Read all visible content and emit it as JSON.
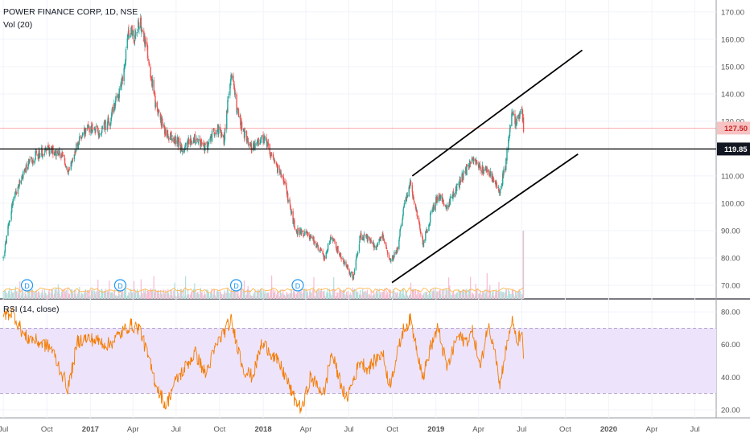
{
  "header": {
    "title": "POWER FINANCE CORP, 1D, NSE",
    "volume_label": "Vol (20)",
    "rsi_label": "RSI (14, close)"
  },
  "colors": {
    "up": "#26a69a",
    "down": "#ef5350",
    "rsi_line": "#f57c00",
    "rsi_band": "#ede3fb",
    "price_line": "#ef5350",
    "support_line": "#000000",
    "axis_text": "#555555",
    "grid": "#f0f3fa",
    "marker": "#2196f3"
  },
  "chart_data": [
    {
      "type": "candlestick",
      "title": "POWER FINANCE CORP, 1D, NSE",
      "x_tick_labels": [
        "Jul",
        "Oct",
        "2017",
        "Apr",
        "Jul",
        "Oct",
        "2018",
        "Apr",
        "Jul",
        "Oct",
        "2019",
        "Apr",
        "Jul",
        "Oct",
        "2020",
        "Apr",
        "Jul"
      ],
      "bold_x_tick_labels": [
        "2017",
        "2018",
        "2019",
        "2020"
      ],
      "y_tick_labels": [
        "70.00",
        "80.00",
        "90.00",
        "100.00",
        "110.00",
        "120.00",
        "130.00",
        "140.00",
        "150.00",
        "160.00",
        "170.00"
      ],
      "ylim": [
        65,
        172
      ],
      "current_price": 127.5,
      "current_price_label": "127.50",
      "horizontal_line": 119.85,
      "horizontal_line_label": "119.85",
      "anchors": [
        [
          "2016-07-01",
          80
        ],
        [
          "2016-07-20",
          100
        ],
        [
          "2016-08-15",
          112
        ],
        [
          "2016-09-10",
          118
        ],
        [
          "2016-10-10",
          120
        ],
        [
          "2016-11-05",
          117
        ],
        [
          "2016-11-15",
          110
        ],
        [
          "2016-12-05",
          122
        ],
        [
          "2016-12-25",
          128
        ],
        [
          "2017-01-20",
          126
        ],
        [
          "2017-02-10",
          130
        ],
        [
          "2017-03-10",
          145
        ],
        [
          "2017-03-25",
          165
        ],
        [
          "2017-04-05",
          160
        ],
        [
          "2017-04-15",
          168
        ],
        [
          "2017-05-01",
          155
        ],
        [
          "2017-05-20",
          135
        ],
        [
          "2017-06-10",
          125
        ],
        [
          "2017-06-25",
          124
        ],
        [
          "2017-07-15",
          120
        ],
        [
          "2017-08-10",
          124
        ],
        [
          "2017-09-01",
          120
        ],
        [
          "2017-09-25",
          128
        ],
        [
          "2017-10-10",
          123
        ],
        [
          "2017-10-25",
          148
        ],
        [
          "2017-11-08",
          133
        ],
        [
          "2017-11-20",
          126
        ],
        [
          "2017-12-10",
          120
        ],
        [
          "2017-12-28",
          124
        ],
        [
          "2018-01-10",
          121
        ],
        [
          "2018-01-25",
          114
        ],
        [
          "2018-02-10",
          110
        ],
        [
          "2018-02-25",
          100
        ],
        [
          "2018-03-10",
          90
        ],
        [
          "2018-04-01",
          89
        ],
        [
          "2018-04-20",
          86
        ],
        [
          "2018-05-10",
          80
        ],
        [
          "2018-05-25",
          88
        ],
        [
          "2018-06-10",
          82
        ],
        [
          "2018-06-25",
          77
        ],
        [
          "2018-07-10",
          73
        ],
        [
          "2018-07-25",
          88
        ],
        [
          "2018-08-10",
          87
        ],
        [
          "2018-08-25",
          84
        ],
        [
          "2018-09-10",
          88
        ],
        [
          "2018-09-25",
          79
        ],
        [
          "2018-10-10",
          82
        ],
        [
          "2018-10-25",
          98
        ],
        [
          "2018-11-08",
          107
        ],
        [
          "2018-11-20",
          98
        ],
        [
          "2018-12-05",
          85
        ],
        [
          "2018-12-20",
          95
        ],
        [
          "2019-01-05",
          103
        ],
        [
          "2019-01-25",
          99
        ],
        [
          "2019-02-15",
          106
        ],
        [
          "2019-03-05",
          112
        ],
        [
          "2019-03-20",
          116
        ],
        [
          "2019-04-05",
          113
        ],
        [
          "2019-04-20",
          112
        ],
        [
          "2019-05-05",
          108
        ],
        [
          "2019-05-15",
          104
        ],
        [
          "2019-05-28",
          114
        ],
        [
          "2019-06-10",
          132
        ],
        [
          "2019-06-22",
          130
        ],
        [
          "2019-07-01",
          136
        ],
        [
          "2019-07-05",
          127.5
        ]
      ],
      "trend_channel_upper": {
        "start": [
          "2018-11-12",
          110
        ],
        "end": [
          "2019-11-06",
          156
        ]
      },
      "trend_channel_lower": {
        "start": [
          "2018-09-30",
          71
        ],
        "end": [
          "2019-10-28",
          118
        ]
      },
      "dividend_markers": [
        {
          "label": "D",
          "date": "2016-08-20"
        },
        {
          "label": "D",
          "date": "2017-03-05"
        },
        {
          "label": "D",
          "date": "2017-11-05"
        },
        {
          "label": "D",
          "date": "2018-03-15"
        }
      ],
      "volume_spike": {
        "date": "2019-07-05",
        "relative_height": 0.95
      }
    },
    {
      "type": "line",
      "title": "RSI (14, close)",
      "y_tick_labels": [
        "20.00",
        "40.00",
        "60.00",
        "80.00"
      ],
      "ylim": [
        15,
        86
      ],
      "band": [
        30,
        70
      ],
      "anchors": [
        [
          "2016-07-01",
          78
        ],
        [
          "2016-07-20",
          80
        ],
        [
          "2016-08-15",
          65
        ],
        [
          "2016-09-10",
          62
        ],
        [
          "2016-10-10",
          58
        ],
        [
          "2016-11-15",
          33
        ],
        [
          "2016-12-05",
          62
        ],
        [
          "2016-12-25",
          64
        ],
        [
          "2017-02-10",
          60
        ],
        [
          "2017-03-25",
          72
        ],
        [
          "2017-04-15",
          70
        ],
        [
          "2017-05-20",
          35
        ],
        [
          "2017-06-10",
          22
        ],
        [
          "2017-06-25",
          35
        ],
        [
          "2017-08-10",
          55
        ],
        [
          "2017-09-01",
          42
        ],
        [
          "2017-09-25",
          60
        ],
        [
          "2017-10-25",
          75
        ],
        [
          "2017-11-20",
          45
        ],
        [
          "2017-12-10",
          40
        ],
        [
          "2017-12-28",
          60
        ],
        [
          "2018-01-10",
          58
        ],
        [
          "2018-02-10",
          45
        ],
        [
          "2018-03-10",
          25
        ],
        [
          "2018-03-25",
          20
        ],
        [
          "2018-04-10",
          40
        ],
        [
          "2018-05-10",
          30
        ],
        [
          "2018-05-25",
          55
        ],
        [
          "2018-06-10",
          40
        ],
        [
          "2018-06-25",
          26
        ],
        [
          "2018-07-25",
          50
        ],
        [
          "2018-08-10",
          45
        ],
        [
          "2018-09-10",
          55
        ],
        [
          "2018-09-25",
          35
        ],
        [
          "2018-10-25",
          70
        ],
        [
          "2018-11-08",
          75
        ],
        [
          "2018-11-20",
          60
        ],
        [
          "2018-12-05",
          40
        ],
        [
          "2018-12-20",
          58
        ],
        [
          "2019-01-05",
          70
        ],
        [
          "2019-01-25",
          45
        ],
        [
          "2019-02-15",
          65
        ],
        [
          "2019-03-05",
          62
        ],
        [
          "2019-03-20",
          68
        ],
        [
          "2019-04-05",
          45
        ],
        [
          "2019-04-20",
          72
        ],
        [
          "2019-05-05",
          60
        ],
        [
          "2019-05-15",
          35
        ],
        [
          "2019-05-28",
          55
        ],
        [
          "2019-06-10",
          75
        ],
        [
          "2019-06-22",
          60
        ],
        [
          "2019-07-01",
          70
        ],
        [
          "2019-07-05",
          48
        ]
      ]
    }
  ]
}
